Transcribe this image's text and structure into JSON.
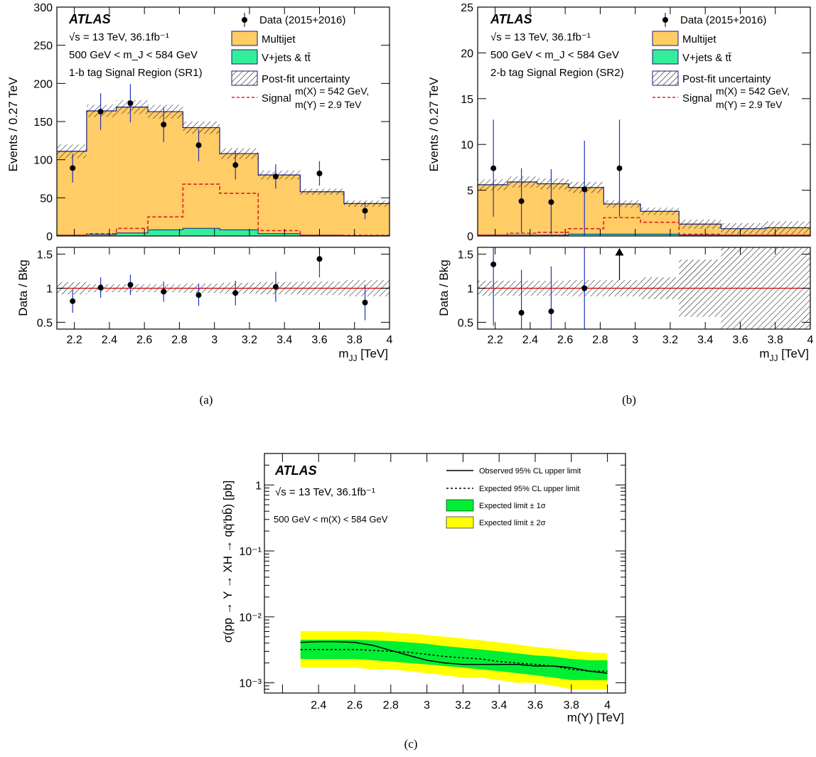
{
  "colors": {
    "multijet": "#ffcc66",
    "vjets_ttbar": "#33ee99",
    "edge": "#1a1a80",
    "signal": "#e02020",
    "data": "#000000",
    "error_bar": "#2233bb",
    "ratio_line": "#cc0000",
    "band_1sigma": "#00ee33",
    "band_2sigma": "#ffff00"
  },
  "panel_a": {
    "caption": "(a)",
    "atlas": "ATLAS",
    "energy_line": "√s = 13 TeV, 36.1fb⁻¹",
    "mass_window": "500 GeV < m_J < 584 GeV",
    "region": "1-b tag Signal Region (SR1)",
    "legend": {
      "data": "Data (2015+2016)",
      "multijet": "Multijet",
      "vjets": "V+jets & tt̄",
      "uncertainty": "Post-fit uncertainty",
      "signal": "Signal",
      "signal_mx": "m(X) = 542 GeV,",
      "signal_my": "m(Y) = 2.9 TeV"
    }
  },
  "panel_b": {
    "caption": "(b)",
    "atlas": "ATLAS",
    "energy_line": "√s = 13 TeV, 36.1fb⁻¹",
    "mass_window": "500 GeV < m_J < 584 GeV",
    "region": "2-b tag Signal Region (SR2)",
    "legend": {
      "data": "Data (2015+2016)",
      "multijet": "Multijet",
      "vjets": "V+jets & tt̄",
      "uncertainty": "Post-fit uncertainty",
      "signal": "Signal",
      "signal_mx": "m(X) = 542 GeV,",
      "signal_my": "m(Y) = 2.9 TeV"
    }
  },
  "panel_c": {
    "caption": "(c)",
    "atlas": "ATLAS",
    "energy_line": "√s = 13 TeV, 36.1fb⁻¹",
    "mass_window": "500 GeV < m(X) < 584 GeV",
    "legend": {
      "observed": "Observed 95% CL upper limit",
      "expected": "Expected 95% CL upper limit",
      "one_sigma": "Expected limit ± 1σ",
      "two_sigma": "Expected limit ± 2σ"
    }
  },
  "chart_data": [
    {
      "type": "bar",
      "id": "a",
      "ylabel": "Events / 0.27 TeV",
      "xlabel": "m_JJ [TeV]",
      "ratio_ylabel": "Data / Bkg",
      "xlim": [
        2.1,
        4.0
      ],
      "ylim": [
        0,
        300
      ],
      "ratio_ylim": [
        0.4,
        1.6
      ],
      "bin_edges": [
        2.1,
        2.27,
        2.44,
        2.62,
        2.82,
        3.03,
        3.25,
        3.49,
        3.74,
        4.0
      ],
      "multijet": [
        110,
        162,
        165,
        155,
        132,
        100,
        77,
        57,
        42
      ],
      "vjets_ttbar": [
        1,
        2,
        4,
        8,
        10,
        8,
        3,
        1,
        0.5
      ],
      "uncertainty": [
        9,
        8,
        9,
        9,
        8,
        7,
        6,
        4,
        4
      ],
      "signal": [
        1,
        3,
        10,
        25,
        68,
        56,
        7,
        1,
        1
      ],
      "data_x": [
        2.19,
        2.35,
        2.52,
        2.71,
        2.91,
        3.12,
        3.35,
        3.6,
        3.86
      ],
      "data_y": [
        89,
        163,
        174,
        146,
        119,
        93,
        78,
        82,
        33
      ],
      "data_err": [
        19,
        24,
        25,
        23,
        21,
        19,
        16,
        16,
        11
      ],
      "ratio_y": [
        0.81,
        1.01,
        1.05,
        0.95,
        0.9,
        0.93,
        1.02,
        1.43,
        0.79
      ],
      "ratio_err": [
        0.17,
        0.15,
        0.15,
        0.15,
        0.16,
        0.18,
        0.22,
        0.27,
        0.26
      ],
      "ratio_band": [
        0.09,
        0.06,
        0.06,
        0.06,
        0.07,
        0.08,
        0.09,
        0.1,
        0.12
      ]
    },
    {
      "type": "bar",
      "id": "b",
      "ylabel": "Events / 0.27 TeV",
      "xlabel": "m_JJ [TeV]",
      "ratio_ylabel": "Data / Bkg",
      "xlim": [
        2.1,
        4.0
      ],
      "ylim": [
        0,
        25
      ],
      "ratio_ylim": [
        0.4,
        1.6
      ],
      "bin_edges": [
        2.1,
        2.27,
        2.44,
        2.62,
        2.82,
        3.03,
        3.25,
        3.49,
        3.74,
        4.0
      ],
      "multijet": [
        5.5,
        5.8,
        5.6,
        5.1,
        3.3,
        2.5,
        1.2,
        0.7,
        0.8
      ],
      "vjets_ttbar": [
        0.1,
        0.1,
        0.1,
        0.2,
        0.2,
        0.2,
        0.1,
        0.1,
        0.1
      ],
      "uncertainty": [
        0.6,
        0.6,
        0.6,
        0.6,
        0.4,
        0.4,
        0.5,
        0.6,
        0.7
      ],
      "signal": [
        0.1,
        0.3,
        0.4,
        0.8,
        2.0,
        1.5,
        0.2,
        0.1,
        0.1
      ],
      "data_x": [
        2.19,
        2.35,
        2.52,
        2.71,
        2.91
      ],
      "data_y": [
        7.4,
        3.8,
        3.7,
        5.1,
        7.4
      ],
      "data_err_up": [
        5.3,
        3.6,
        3.6,
        5.3,
        5.3
      ],
      "data_err_down": [
        5.3,
        3.5,
        3.5,
        5.1,
        5.3
      ],
      "ratio_y": [
        1.35,
        0.64,
        0.66,
        1.0
      ],
      "ratio_x": [
        2.19,
        2.35,
        2.52,
        2.71
      ],
      "ratio_err": [
        0.9,
        0.63,
        0.66,
        1.0
      ],
      "ratio_arrow_x": 2.91,
      "ratio_band": [
        0.11,
        0.11,
        0.11,
        0.12,
        0.12,
        0.16,
        0.42,
        0.75,
        0.75
      ]
    },
    {
      "type": "line",
      "id": "c",
      "ylabel": "σ(pp → Y → XH → qq̄′bb̄) [pb]",
      "xlabel": "m(Y) [TeV]",
      "xlim": [
        2.1,
        4.1
      ],
      "ylim_log": [
        0.0007,
        3.0
      ],
      "yticks": [
        "1",
        "10⁻¹",
        "10⁻²",
        "10⁻³"
      ],
      "x": [
        2.3,
        2.4,
        2.5,
        2.6,
        2.7,
        2.8,
        2.9,
        3.0,
        3.1,
        3.2,
        3.3,
        3.4,
        3.5,
        3.6,
        3.7,
        3.8,
        3.9,
        4.0
      ],
      "observed": [
        0.0041,
        0.0042,
        0.0042,
        0.0041,
        0.0037,
        0.0031,
        0.0026,
        0.0022,
        0.002,
        0.0019,
        0.0019,
        0.0019,
        0.0019,
        0.0018,
        0.0018,
        0.0017,
        0.0015,
        0.0014
      ],
      "expected": [
        0.0032,
        0.0032,
        0.0032,
        0.0032,
        0.0031,
        0.003,
        0.0029,
        0.0027,
        0.0025,
        0.0024,
        0.0023,
        0.0021,
        0.002,
        0.0019,
        0.0018,
        0.0016,
        0.0015,
        0.0015
      ],
      "minus1": [
        0.0023,
        0.0023,
        0.0023,
        0.0023,
        0.0022,
        0.0021,
        0.002,
        0.0019,
        0.0018,
        0.0017,
        0.0016,
        0.0015,
        0.0014,
        0.0013,
        0.0012,
        0.0011,
        0.0011,
        0.0011
      ],
      "plus1": [
        0.0045,
        0.0045,
        0.0045,
        0.0045,
        0.0044,
        0.0043,
        0.0041,
        0.0039,
        0.0036,
        0.0034,
        0.0032,
        0.003,
        0.0028,
        0.0026,
        0.0025,
        0.0023,
        0.0022,
        0.0022
      ],
      "minus2": [
        0.0017,
        0.0017,
        0.0017,
        0.0017,
        0.0016,
        0.0016,
        0.0015,
        0.0014,
        0.0013,
        0.0012,
        0.0012,
        0.0011,
        0.001,
        0.001,
        0.0009,
        0.0008,
        0.0008,
        0.0008
      ],
      "plus2": [
        0.0061,
        0.0061,
        0.0061,
        0.0061,
        0.006,
        0.0058,
        0.0056,
        0.0053,
        0.005,
        0.0047,
        0.0044,
        0.0041,
        0.0038,
        0.0035,
        0.0033,
        0.0031,
        0.0029,
        0.0028
      ]
    }
  ]
}
